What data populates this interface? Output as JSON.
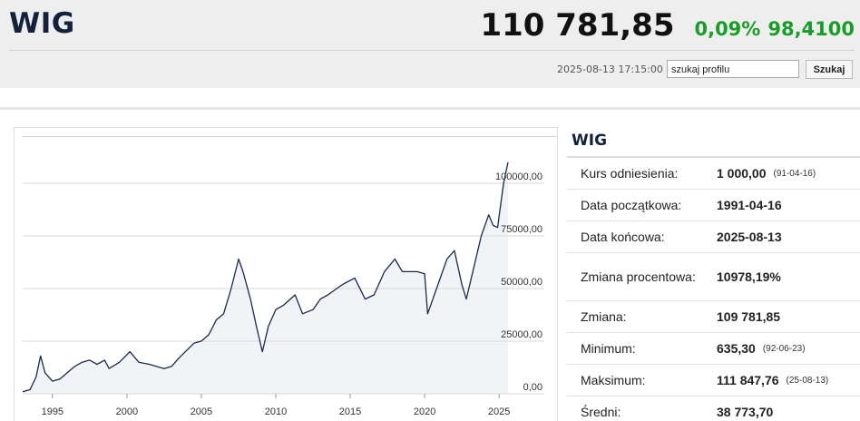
{
  "header": {
    "title": "WIG",
    "price": "110 781,85",
    "change_pct": "0,09%",
    "change": "98,4100",
    "datetime": "2025-08-13 17:15:00",
    "search_placeholder": "szukaj profilu",
    "search_button": "Szukaj"
  },
  "chart_data": {
    "type": "line",
    "color": "#1a2b4a",
    "area_color": "#f1f3f6",
    "x": [
      1993.0,
      1993.5,
      1993.9,
      1994.2,
      1994.5,
      1995.0,
      1995.5,
      1996.0,
      1996.5,
      1997.0,
      1997.5,
      1998.0,
      1998.5,
      1998.8,
      1999.5,
      2000.2,
      2000.8,
      2001.5,
      2002.5,
      2003.0,
      2003.5,
      2004.5,
      2005.0,
      2005.5,
      2006.0,
      2006.5,
      2007.0,
      2007.5,
      2007.8,
      2008.3,
      2008.7,
      2009.1,
      2009.5,
      2010.0,
      2010.5,
      2011.3,
      2011.8,
      2012.5,
      2013.0,
      2013.5,
      2014.5,
      2015.3,
      2016.0,
      2016.6,
      2017.3,
      2018.0,
      2018.5,
      2019.5,
      2020.0,
      2020.2,
      2020.7,
      2021.5,
      2022.0,
      2022.5,
      2022.8,
      2023.3,
      2023.8,
      2024.3,
      2024.6,
      2024.9,
      2025.3,
      2025.6
    ],
    "values": [
      1000,
      2000,
      8000,
      18000,
      10000,
      6000,
      7000,
      10000,
      13000,
      15000,
      16000,
      14000,
      16000,
      12000,
      15000,
      20000,
      15000,
      14000,
      12000,
      13000,
      17000,
      24000,
      25000,
      28000,
      35000,
      38000,
      50000,
      64000,
      58000,
      45000,
      32000,
      20000,
      32000,
      40000,
      42000,
      47000,
      38000,
      40000,
      45000,
      47000,
      52000,
      55000,
      45000,
      47000,
      58000,
      64000,
      58000,
      58000,
      57000,
      38000,
      48000,
      64000,
      68000,
      52000,
      45000,
      60000,
      75000,
      85000,
      80000,
      79000,
      100000,
      110000
    ],
    "xlim": [
      1993,
      2025.6
    ],
    "ylim": [
      0,
      120000
    ],
    "xticks": [
      1995,
      2000,
      2005,
      2010,
      2015,
      2020,
      2025
    ],
    "yticks": [
      {
        "value": 0,
        "label": "0,00"
      },
      {
        "value": 25000,
        "label": "25000,00"
      },
      {
        "value": 50000,
        "label": "50000,00"
      },
      {
        "value": 75000,
        "label": "75000,00"
      },
      {
        "value": 100000,
        "label": "100000,00"
      }
    ],
    "grid": true
  },
  "table": {
    "title": "WIG",
    "rows": [
      [
        "Kurs odniesienia:",
        "1 000,00",
        "(91-04-16)"
      ],
      [
        "Data początkowa:",
        "1991-04-16"
      ],
      [
        "Data końcowa:",
        "2025-08-13"
      ],
      [
        "Zmiana procentowa:",
        "10978,19%"
      ],
      [
        "Zmiana:",
        "109 781,85"
      ],
      [
        "Minimum:",
        "635,30",
        "(92-06-23)"
      ],
      [
        "Maksimum:",
        "111 847,76",
        "(25-08-13)"
      ],
      [
        "Średni:",
        "38 773,70"
      ]
    ]
  }
}
